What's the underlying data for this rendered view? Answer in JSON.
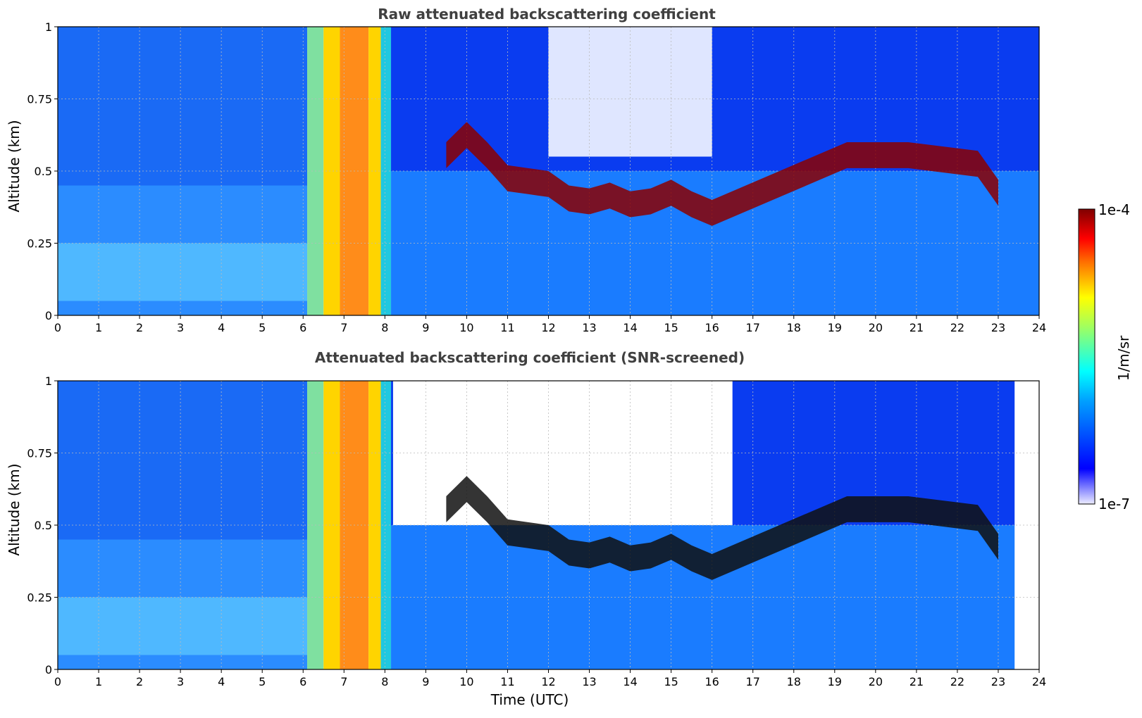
{
  "chart_data": [
    {
      "type": "heatmap",
      "title": "Raw attenuated backscattering coefficient",
      "xlabel": "",
      "ylabel": "Altitude (km)",
      "xlim": [
        0,
        24
      ],
      "ylim": [
        0,
        1
      ],
      "x_ticks": [
        "0",
        "1",
        "2",
        "3",
        "4",
        "5",
        "6",
        "7",
        "8",
        "9",
        "10",
        "11",
        "12",
        "13",
        "14",
        "15",
        "16",
        "17",
        "18",
        "19",
        "20",
        "21",
        "22",
        "23",
        "24"
      ],
      "y_ticks": [
        "0",
        "0.25",
        "0.5",
        "0.75",
        "1"
      ],
      "grid": true,
      "cloud_base_km": [
        {
          "time": 9.5,
          "altitude": 0.55
        },
        {
          "time": 10.0,
          "altitude": 0.62
        },
        {
          "time": 10.5,
          "altitude": 0.55
        },
        {
          "time": 11.0,
          "altitude": 0.47
        },
        {
          "time": 11.5,
          "altitude": 0.46
        },
        {
          "time": 12.0,
          "altitude": 0.45
        },
        {
          "time": 12.5,
          "altitude": 0.4
        },
        {
          "time": 13.0,
          "altitude": 0.39
        },
        {
          "time": 13.5,
          "altitude": 0.41
        },
        {
          "time": 14.0,
          "altitude": 0.38
        },
        {
          "time": 14.5,
          "altitude": 0.39
        },
        {
          "time": 15.0,
          "altitude": 0.42
        },
        {
          "time": 15.5,
          "altitude": 0.38
        },
        {
          "time": 16.0,
          "altitude": 0.35
        },
        {
          "time": 19.3,
          "altitude": 0.55
        },
        {
          "time": 20.8,
          "altitude": 0.55
        },
        {
          "time": 22.5,
          "altitude": 0.52
        },
        {
          "time": 23.0,
          "altitude": 0.42
        }
      ]
    },
    {
      "type": "heatmap",
      "title": "Attenuated backscattering coefficient (SNR-screened)",
      "xlabel": "Time (UTC)",
      "ylabel": "Altitude (km)",
      "xlim": [
        0,
        24
      ],
      "ylim": [
        0,
        1
      ],
      "x_ticks": [
        "0",
        "1",
        "2",
        "3",
        "4",
        "5",
        "6",
        "7",
        "8",
        "9",
        "10",
        "11",
        "12",
        "13",
        "14",
        "15",
        "16",
        "17",
        "18",
        "19",
        "20",
        "21",
        "22",
        "23",
        "24"
      ],
      "y_ticks": [
        "0",
        "0.25",
        "0.5",
        "0.75",
        "1"
      ],
      "grid": true
    }
  ],
  "colorbar": {
    "label": "1/m/sr",
    "max_label": "1e-4",
    "min_label": "1e-7",
    "scale": "log",
    "range": [
      1e-07,
      0.0001
    ],
    "colormap": "jet"
  }
}
